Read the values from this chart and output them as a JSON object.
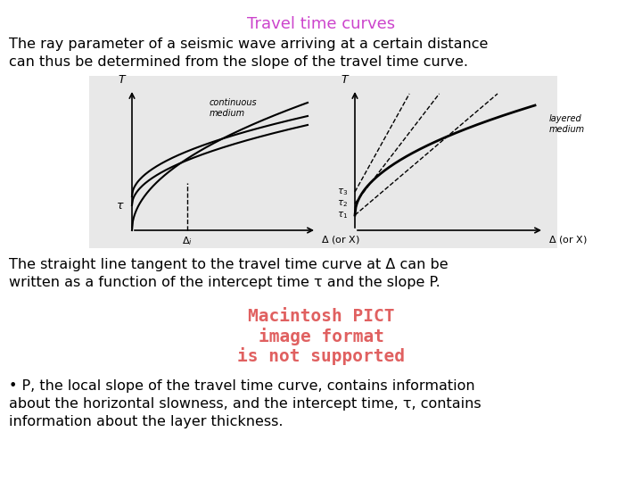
{
  "title": "Travel time curves",
  "title_color": "#cc44cc",
  "title_fontsize": 13,
  "background_color": "#ffffff",
  "para1_line1": "The ray parameter of a seismic wave arriving at a certain distance",
  "para1_line2": "can thus be determined from the slope of the travel time curve.",
  "para1_fontsize": 11.5,
  "para2_line1": "The straight line tangent to the travel time curve at Δ can be",
  "para2_line2": "written as a function of the intercept time τ and the slope P.",
  "para2_fontsize": 11.5,
  "macintosh_line1": "Macintosh PICT",
  "macintosh_line2": "image format",
  "macintosh_line3": "is not supported",
  "macintosh_color": "#e06060",
  "macintosh_fontsize": 14,
  "para3_line1": "• P, the local slope of the travel time curve, contains information",
  "para3_line2": "about the horizontal slowness, and the intercept time, τ, contains",
  "para3_line3": "information about the layer thickness.",
  "para3_fontsize": 11.5,
  "sketch_bg": "#e8e8e8"
}
